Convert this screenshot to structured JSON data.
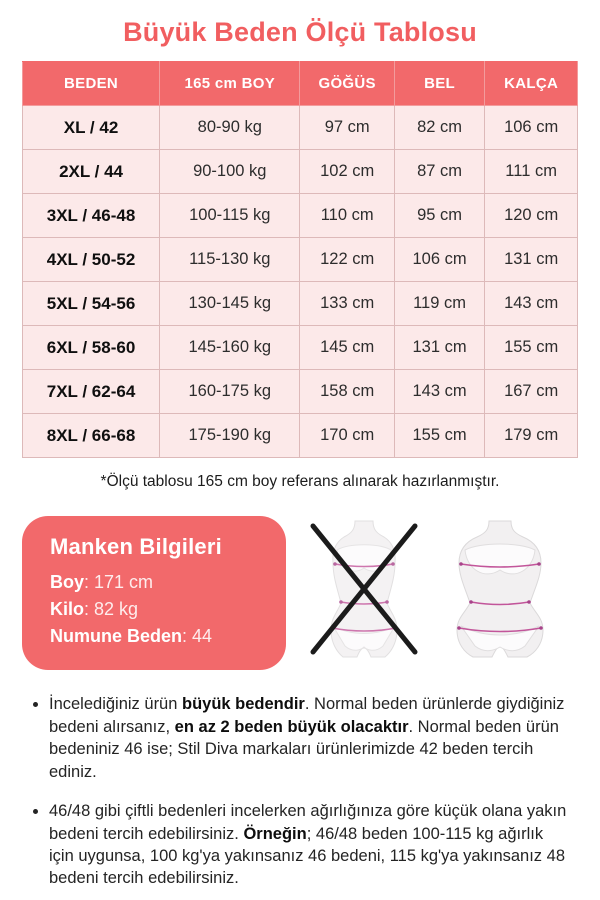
{
  "title": "Büyük Beden Ölçü Tablosu",
  "colors": {
    "accent": "#f2696b",
    "title_text": "#f15e60",
    "row_background": "#fce9e9",
    "grid_line": "#ddb9b9",
    "measure_line": "#c2559a",
    "cross_mark": "#1b1b1b"
  },
  "table": {
    "headers": [
      "BEDEN",
      "165 cm BOY",
      "GÖĞÜS",
      "BEL",
      "KALÇA"
    ],
    "rows": [
      [
        "XL / 42",
        "80-90 kg",
        "97 cm",
        "82 cm",
        "106 cm"
      ],
      [
        "2XL / 44",
        "90-100 kg",
        "102 cm",
        "87 cm",
        "111 cm"
      ],
      [
        "3XL / 46-48",
        "100-115 kg",
        "110 cm",
        "95 cm",
        "120 cm"
      ],
      [
        "4XL / 50-52",
        "115-130 kg",
        "122 cm",
        "106 cm",
        "131 cm"
      ],
      [
        "5XL / 54-56",
        "130-145 kg",
        "133 cm",
        "119 cm",
        "143 cm"
      ],
      [
        "6XL / 58-60",
        "145-160 kg",
        "145 cm",
        "131 cm",
        "155 cm"
      ],
      [
        "7XL / 62-64",
        "160-175 kg",
        "158 cm",
        "143 cm",
        "167 cm"
      ],
      [
        "8XL / 66-68",
        "175-190 kg",
        "170 cm",
        "155 cm",
        "179 cm"
      ]
    ]
  },
  "footnote": "*Ölçü tablosu 165 cm boy referans alınarak hazırlanmıştır.",
  "model_info": {
    "title": "Manken Bilgileri",
    "lines": [
      {
        "label": "Boy",
        "value": "171 cm"
      },
      {
        "label": "Kilo",
        "value": "82 kg"
      },
      {
        "label": "Numune Beden",
        "value": "44"
      }
    ]
  },
  "figures": {
    "left": "slim-body-measurement-figure-crossed-out",
    "right": "plus-body-measurement-figure"
  },
  "notes": [
    {
      "segments": [
        {
          "text": "İncelediğiniz ürün ",
          "bold": false
        },
        {
          "text": "büyük bedendir",
          "bold": true
        },
        {
          "text": ". Normal beden ürünlerde giydiğiniz bedeni alırsanız, ",
          "bold": false
        },
        {
          "text": "en az 2 beden büyük olacaktır",
          "bold": true
        },
        {
          "text": ". Normal beden ürün bedeniniz 46 ise; Stil Diva markaları ürünlerimizde 42 beden tercih ediniz.",
          "bold": false
        }
      ]
    },
    {
      "segments": [
        {
          "text": "46/48 gibi çiftli bedenleri incelerken ağırlığınıza göre küçük olana yakın bedeni tercih edebilirsiniz. ",
          "bold": false
        },
        {
          "text": "Örneğin",
          "bold": true
        },
        {
          "text": "; 46/48 beden 100-115 kg ağırlık için uygunsa, 100 kg'ya yakınsanız 46 bedeni, 115 kg'ya yakınsanız 48 bedeni tercih edebilirsiniz.",
          "bold": false
        }
      ]
    }
  ]
}
